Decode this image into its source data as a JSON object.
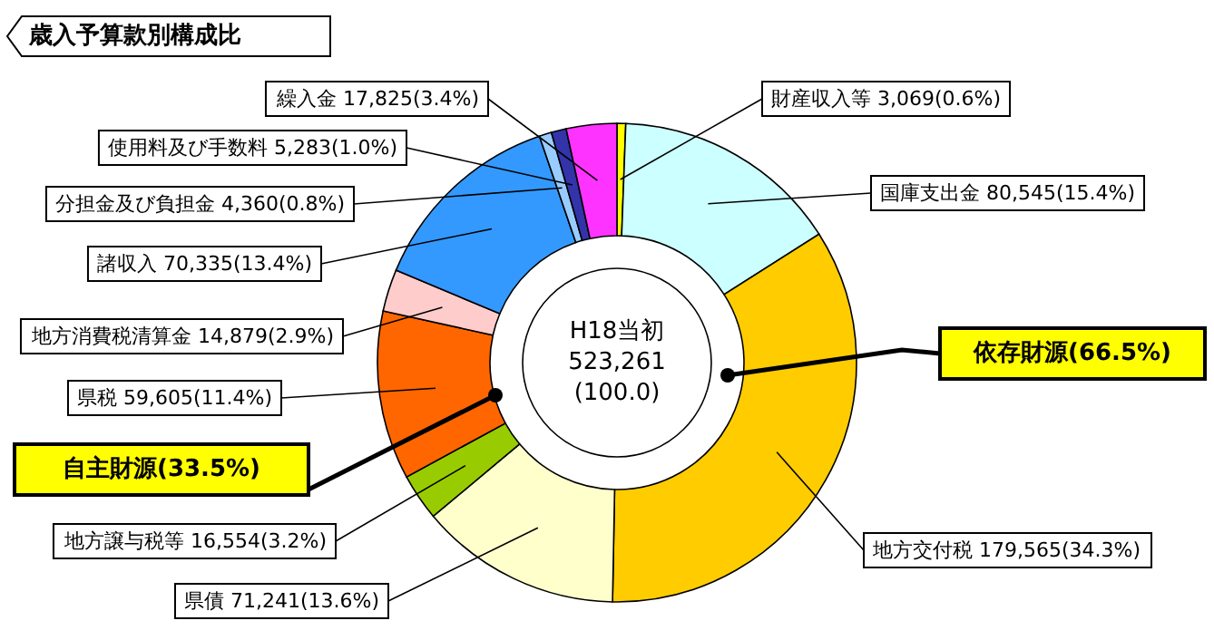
{
  "chart_data": {
    "type": "donut",
    "title": "歳入予算款別構成比",
    "categories": [
      "財産収入等",
      "国庫支出金",
      "地方交付税",
      "県債",
      "地方譲与税等",
      "県税",
      "地方消費税清算金",
      "諸収入",
      "分担金及び負担金",
      "使用料及び手数料",
      "繰入金"
    ],
    "values": [
      3069,
      80545,
      179565,
      71241,
      16554,
      59605,
      14879,
      70335,
      4360,
      5283,
      17825
    ],
    "value_labels": [
      "3,069(0.6%)",
      "80,545(15.4%)",
      "179,565(34.3%)",
      "71,241(13.6%)",
      "16,554(3.2%)",
      "59,605(11.4%)",
      "14,879(2.9%)",
      "70,335(13.4%)",
      "4,360(0.8%)",
      "5,283(1.0%)",
      "17,825(3.4%)"
    ],
    "colors": [
      "#ffff00",
      "#ccffff",
      "#ffcc00",
      "#ffffcc",
      "#99cc00",
      "#ff6600",
      "#ffcccc",
      "#3399ff",
      "#99ccff",
      "#3333aa",
      "#ff33ff"
    ],
    "annotations": [
      "H18当初",
      "523,261",
      "(100.0)",
      "依存財源(66.5%)",
      "自主財源(33.5%)"
    ]
  }
}
